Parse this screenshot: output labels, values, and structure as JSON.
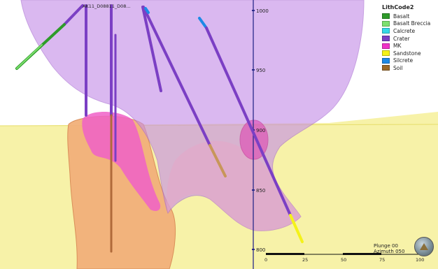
{
  "drillholes": {
    "label": "AK11_D08811_D08..."
  },
  "elevation_axis": {
    "ticks": [
      "1000",
      "950",
      "900",
      "850",
      "800"
    ]
  },
  "scale_bar": {
    "ticks": [
      "0",
      "25",
      "50",
      "75",
      "100"
    ]
  },
  "legend": {
    "title": "LithCode2",
    "items": [
      {
        "label": "Basalt",
        "color": "#2e9b2a"
      },
      {
        "label": "Basalt Breccia",
        "color": "#7de06e"
      },
      {
        "label": "Calcrete",
        "color": "#35d9e6"
      },
      {
        "label": "Crater",
        "color": "#7b3fc4"
      },
      {
        "label": "MK",
        "color": "#f032c8"
      },
      {
        "label": "Sandstone",
        "color": "#f4f21a"
      },
      {
        "label": "Silcrete",
        "color": "#1d8ae6"
      },
      {
        "label": "Soil",
        "color": "#9b6a2a"
      }
    ]
  },
  "orientation": {
    "plunge": "Plunge 00",
    "azimuth": "Azimuth 050"
  }
}
